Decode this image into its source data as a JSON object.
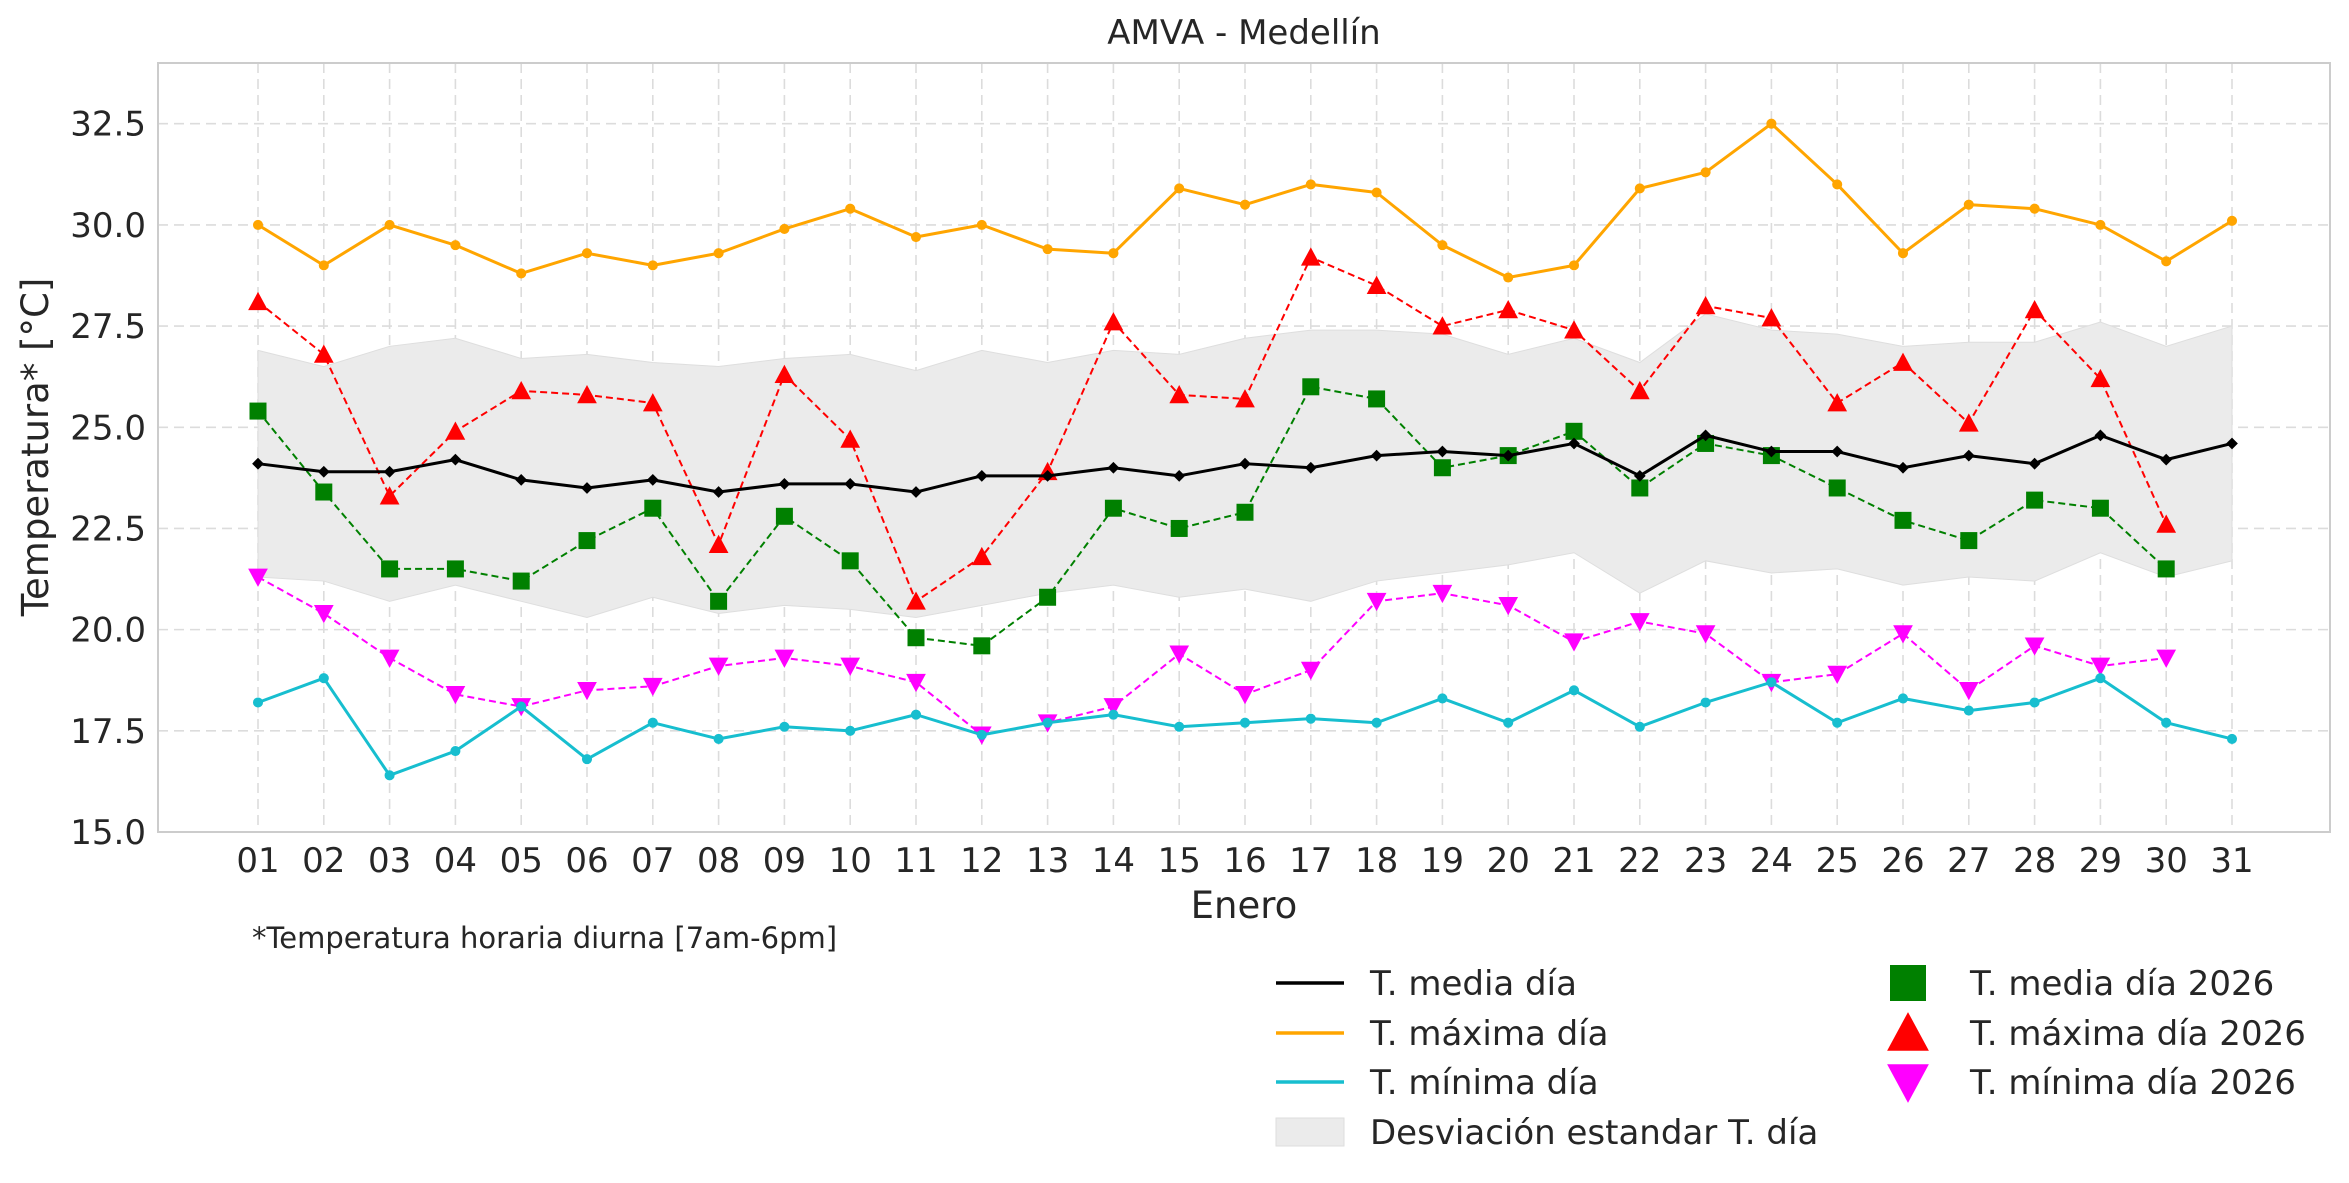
{
  "chart_data": {
    "type": "line",
    "title": "AMVA - Medellín",
    "xlabel": "Enero",
    "ylabel": "Temperatura* [°C]",
    "ylim": [
      15.0,
      34.0
    ],
    "yticks": [
      "15.0",
      "17.5",
      "20.0",
      "22.5",
      "25.0",
      "27.5",
      "30.0",
      "32.5"
    ],
    "categories": [
      "01",
      "02",
      "03",
      "04",
      "05",
      "06",
      "07",
      "08",
      "09",
      "10",
      "11",
      "12",
      "13",
      "14",
      "15",
      "16",
      "17",
      "18",
      "19",
      "20",
      "21",
      "22",
      "23",
      "24",
      "25",
      "26",
      "27",
      "28",
      "29",
      "30",
      "31"
    ],
    "footnote": "*Temperatura horaria diurna [7am-6pm]",
    "band": {
      "name": "Desviación estandar T. día",
      "color": "#ebebeb",
      "upper": [
        26.9,
        26.5,
        27.0,
        27.2,
        26.7,
        26.8,
        26.6,
        26.5,
        26.7,
        26.8,
        26.4,
        26.9,
        26.6,
        26.9,
        26.8,
        27.2,
        27.4,
        27.4,
        27.3,
        26.8,
        27.2,
        26.6,
        27.8,
        27.4,
        27.3,
        27.0,
        27.1,
        27.1,
        27.6,
        27.0,
        27.5
      ],
      "lower": [
        21.3,
        21.2,
        20.7,
        21.1,
        20.7,
        20.3,
        20.8,
        20.4,
        20.6,
        20.5,
        20.3,
        20.6,
        20.9,
        21.1,
        20.8,
        21.0,
        20.7,
        21.2,
        21.4,
        21.6,
        21.9,
        20.9,
        21.7,
        21.4,
        21.5,
        21.1,
        21.3,
        21.2,
        21.9,
        21.3,
        21.7
      ]
    },
    "series": [
      {
        "name": "T. media día",
        "color": "#000000",
        "style": "solid",
        "marker": "diamond",
        "values": [
          24.1,
          23.9,
          23.9,
          24.2,
          23.7,
          23.5,
          23.7,
          23.4,
          23.6,
          23.6,
          23.4,
          23.8,
          23.8,
          24.0,
          23.8,
          24.1,
          24.0,
          24.3,
          24.4,
          24.3,
          24.6,
          23.8,
          24.8,
          24.4,
          24.4,
          24.0,
          24.3,
          24.1,
          24.8,
          24.2,
          24.6
        ]
      },
      {
        "name": "T. máxima día",
        "color": "#ffa500",
        "style": "solid",
        "marker": "dot",
        "values": [
          30.0,
          29.0,
          30.0,
          29.5,
          28.8,
          29.3,
          29.0,
          29.3,
          29.9,
          30.4,
          29.7,
          30.0,
          29.4,
          29.3,
          30.9,
          30.5,
          31.0,
          30.8,
          29.5,
          28.7,
          29.0,
          30.9,
          31.3,
          32.5,
          31.0,
          29.3,
          30.5,
          30.4,
          30.0,
          29.1,
          30.1
        ]
      },
      {
        "name": "T. mínima día",
        "color": "#17becf",
        "style": "solid",
        "marker": "dot",
        "values": [
          18.2,
          18.8,
          16.4,
          17.0,
          18.1,
          16.8,
          17.7,
          17.3,
          17.6,
          17.5,
          17.9,
          17.4,
          17.7,
          17.9,
          17.6,
          17.7,
          17.8,
          17.7,
          18.3,
          17.7,
          18.5,
          17.6,
          18.2,
          18.7,
          17.7,
          18.3,
          18.0,
          18.2,
          18.8,
          17.7,
          17.3
        ]
      },
      {
        "name": "T. media día 2026",
        "color": "#008000",
        "style": "dashed",
        "marker": "square",
        "values": [
          25.4,
          23.4,
          21.5,
          21.5,
          21.2,
          22.2,
          23.0,
          20.7,
          22.8,
          21.7,
          19.8,
          19.6,
          20.8,
          23.0,
          22.5,
          22.9,
          26.0,
          25.7,
          24.0,
          24.3,
          24.9,
          23.5,
          24.6,
          24.3,
          23.5,
          22.7,
          22.2,
          23.2,
          23.0,
          21.5,
          null
        ]
      },
      {
        "name": "T. máxima día 2026",
        "color": "#ff0000",
        "style": "dashed",
        "marker": "triangle-up",
        "values": [
          28.1,
          26.8,
          23.3,
          24.9,
          25.9,
          25.8,
          25.6,
          22.1,
          26.3,
          24.7,
          20.7,
          21.8,
          23.9,
          27.6,
          25.8,
          25.7,
          29.2,
          28.5,
          27.5,
          27.9,
          27.4,
          25.9,
          28.0,
          27.7,
          25.6,
          26.6,
          25.1,
          27.9,
          26.2,
          22.6,
          null
        ]
      },
      {
        "name": "T. mínima día 2026",
        "color": "#ff00ff",
        "style": "dashed",
        "marker": "triangle-down",
        "values": [
          21.3,
          20.4,
          19.3,
          18.4,
          18.1,
          18.5,
          18.6,
          19.1,
          19.3,
          19.1,
          18.7,
          17.4,
          17.7,
          18.1,
          19.4,
          18.4,
          19.0,
          20.7,
          20.9,
          20.6,
          19.7,
          20.2,
          19.9,
          18.7,
          18.9,
          19.9,
          18.5,
          19.6,
          19.1,
          19.3,
          null
        ]
      }
    ],
    "legend": {
      "placement": "bottom-right",
      "left_column": [
        "T. media día",
        "T. máxima día",
        "T. mínima día",
        "Desviación estandar T. día"
      ],
      "right_column": [
        "T. media día 2026",
        "T. máxima día 2026",
        "T. mínima día 2026"
      ]
    },
    "grid": true
  }
}
